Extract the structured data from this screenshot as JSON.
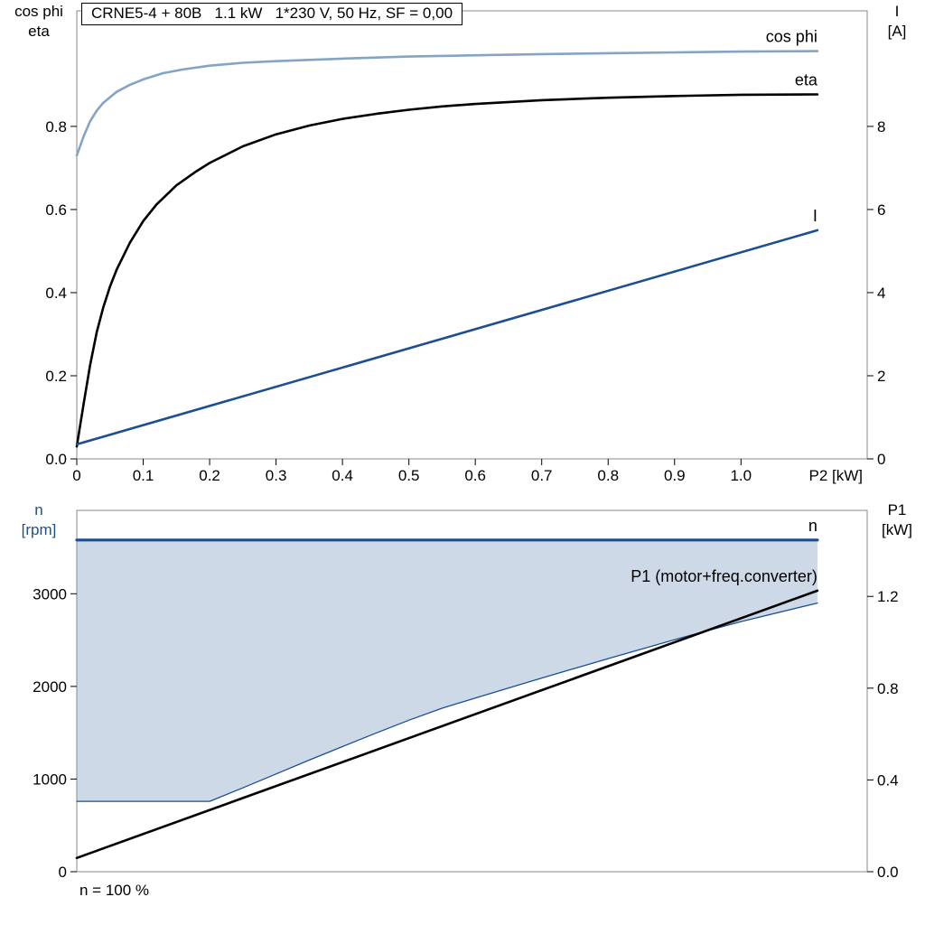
{
  "title": "CRNE5-4 + 80B   1.1 kW   1*230 V, 50 Hz, SF = 0,00",
  "colors": {
    "curve_light_blue": "#84a4c6",
    "curve_dark_blue": "#1b4f91",
    "curve_black": "#000000",
    "band_fill": "#cdd9e7",
    "frame": "#8a8a8a"
  },
  "chart_data": [
    {
      "type": "line",
      "title": "CRNE5-4 + 80B   1.1 kW   1*230 V, 50 Hz, SF = 0,00",
      "x_axis": {
        "label": "P2 [kW]",
        "min": 0,
        "max": 1.19,
        "ticks": [
          {
            "v": 0,
            "t": "0"
          },
          {
            "v": 0.1,
            "t": "0.1"
          },
          {
            "v": 0.2,
            "t": "0.2"
          },
          {
            "v": 0.3,
            "t": "0.3"
          },
          {
            "v": 0.4,
            "t": "0.4"
          },
          {
            "v": 0.5,
            "t": "0.5"
          },
          {
            "v": 0.6,
            "t": "0.6"
          },
          {
            "v": 0.7,
            "t": "0.7"
          },
          {
            "v": 0.8,
            "t": "0.8"
          },
          {
            "v": 0.9,
            "t": "0.9"
          },
          {
            "v": 1.0,
            "t": "1.0"
          }
        ]
      },
      "y_left": {
        "title_lines": [
          "cos phi",
          "eta"
        ],
        "min": 0,
        "max": 1.078,
        "ticks": [
          {
            "v": 0.0,
            "t": "0.0"
          },
          {
            "v": 0.2,
            "t": "0.2"
          },
          {
            "v": 0.4,
            "t": "0.4"
          },
          {
            "v": 0.6,
            "t": "0.6"
          },
          {
            "v": 0.8,
            "t": "0.8"
          }
        ]
      },
      "y_right": {
        "title_lines": [
          "I",
          "[A]"
        ],
        "min": 0,
        "max": 10.78,
        "ticks": [
          {
            "v": 0,
            "t": "0"
          },
          {
            "v": 2,
            "t": "2"
          },
          {
            "v": 4,
            "t": "4"
          },
          {
            "v": 6,
            "t": "6"
          },
          {
            "v": 8,
            "t": "8"
          }
        ]
      },
      "series": [
        {
          "id": "cos-phi",
          "name": "cos phi",
          "axis": "left",
          "color": "#84a4c6",
          "width": 2.6,
          "points": [
            [
              0,
              0.73
            ],
            [
              0.01,
              0.775
            ],
            [
              0.02,
              0.812
            ],
            [
              0.03,
              0.838
            ],
            [
              0.04,
              0.857
            ],
            [
              0.06,
              0.883
            ],
            [
              0.08,
              0.9
            ],
            [
              0.1,
              0.913
            ],
            [
              0.13,
              0.928
            ],
            [
              0.16,
              0.937
            ],
            [
              0.2,
              0.946
            ],
            [
              0.25,
              0.953
            ],
            [
              0.3,
              0.957
            ],
            [
              0.4,
              0.963
            ],
            [
              0.5,
              0.968
            ],
            [
              0.6,
              0.971
            ],
            [
              0.7,
              0.974
            ],
            [
              0.8,
              0.976
            ],
            [
              0.9,
              0.978
            ],
            [
              1.0,
              0.98
            ],
            [
              1.115,
              0.981
            ]
          ]
        },
        {
          "id": "eta",
          "name": "eta",
          "axis": "left",
          "color": "#000000",
          "width": 2.6,
          "points": [
            [
              0,
              0.03
            ],
            [
              0.01,
              0.13
            ],
            [
              0.02,
              0.225
            ],
            [
              0.03,
              0.305
            ],
            [
              0.04,
              0.365
            ],
            [
              0.05,
              0.415
            ],
            [
              0.06,
              0.455
            ],
            [
              0.08,
              0.52
            ],
            [
              0.1,
              0.572
            ],
            [
              0.12,
              0.612
            ],
            [
              0.15,
              0.658
            ],
            [
              0.18,
              0.692
            ],
            [
              0.2,
              0.712
            ],
            [
              0.25,
              0.752
            ],
            [
              0.3,
              0.781
            ],
            [
              0.35,
              0.802
            ],
            [
              0.4,
              0.818
            ],
            [
              0.45,
              0.83
            ],
            [
              0.5,
              0.84
            ],
            [
              0.55,
              0.848
            ],
            [
              0.6,
              0.854
            ],
            [
              0.7,
              0.863
            ],
            [
              0.8,
              0.869
            ],
            [
              0.9,
              0.873
            ],
            [
              1.0,
              0.876
            ],
            [
              1.115,
              0.877
            ]
          ]
        },
        {
          "id": "current",
          "name": "I",
          "axis": "right",
          "color": "#1b4f91",
          "width": 2.6,
          "points": [
            [
              0,
              0.35
            ],
            [
              1.115,
              5.5
            ]
          ]
        }
      ]
    },
    {
      "type": "line",
      "note": "n = 100 %",
      "x_axis": {
        "label": "",
        "min": 0,
        "max": 1.19,
        "ticks": []
      },
      "y_left": {
        "title_lines": [
          "n",
          "[rpm]"
        ],
        "min": 0,
        "max": 3900,
        "ticks": [
          {
            "v": 0,
            "t": "0"
          },
          {
            "v": 1000,
            "t": "1000"
          },
          {
            "v": 2000,
            "t": "2000"
          },
          {
            "v": 3000,
            "t": "3000"
          }
        ]
      },
      "y_right": {
        "title_lines": [
          "P1",
          "[kW]"
        ],
        "min": 0,
        "max": 1.575,
        "ticks": [
          {
            "v": 0.0,
            "t": "0.0"
          },
          {
            "v": 0.4,
            "t": "0.4"
          },
          {
            "v": 0.8,
            "t": "0.8"
          },
          {
            "v": 1.2,
            "t": "1.2"
          }
        ]
      },
      "band": {
        "color": "#cdd9e7",
        "upper": [
          [
            0,
            3580
          ],
          [
            1.115,
            3580
          ]
        ],
        "lower": [
          [
            0,
            760
          ],
          [
            0.2,
            760
          ],
          [
            0.25,
            905
          ],
          [
            0.3,
            1055
          ],
          [
            0.35,
            1205
          ],
          [
            0.4,
            1350
          ],
          [
            0.45,
            1495
          ],
          [
            0.5,
            1635
          ],
          [
            0.55,
            1765
          ],
          [
            0.6,
            1875
          ],
          [
            0.7,
            2090
          ],
          [
            0.8,
            2300
          ],
          [
            0.9,
            2505
          ],
          [
            1.0,
            2700
          ],
          [
            1.115,
            2900
          ]
        ]
      },
      "series": [
        {
          "id": "n-lower",
          "name": "",
          "axis": "left",
          "color": "#1b4f91",
          "width": 1.3,
          "points": [
            [
              0,
              760
            ],
            [
              0.2,
              760
            ],
            [
              0.25,
              905
            ],
            [
              0.3,
              1055
            ],
            [
              0.35,
              1205
            ],
            [
              0.4,
              1350
            ],
            [
              0.45,
              1495
            ],
            [
              0.5,
              1635
            ],
            [
              0.55,
              1765
            ],
            [
              0.6,
              1875
            ],
            [
              0.7,
              2090
            ],
            [
              0.8,
              2300
            ],
            [
              0.9,
              2505
            ],
            [
              1.0,
              2700
            ],
            [
              1.115,
              2900
            ]
          ]
        },
        {
          "id": "n",
          "name": "n",
          "axis": "left",
          "color": "#1b4f91",
          "width": 3.2,
          "points": [
            [
              0,
              3580
            ],
            [
              1.115,
              3580
            ]
          ]
        },
        {
          "id": "p1",
          "name": "P1 (motor+freq.converter)",
          "axis": "right",
          "color": "#000000",
          "width": 2.6,
          "points": [
            [
              0,
              0.06
            ],
            [
              1.115,
              1.225
            ]
          ]
        }
      ]
    }
  ]
}
